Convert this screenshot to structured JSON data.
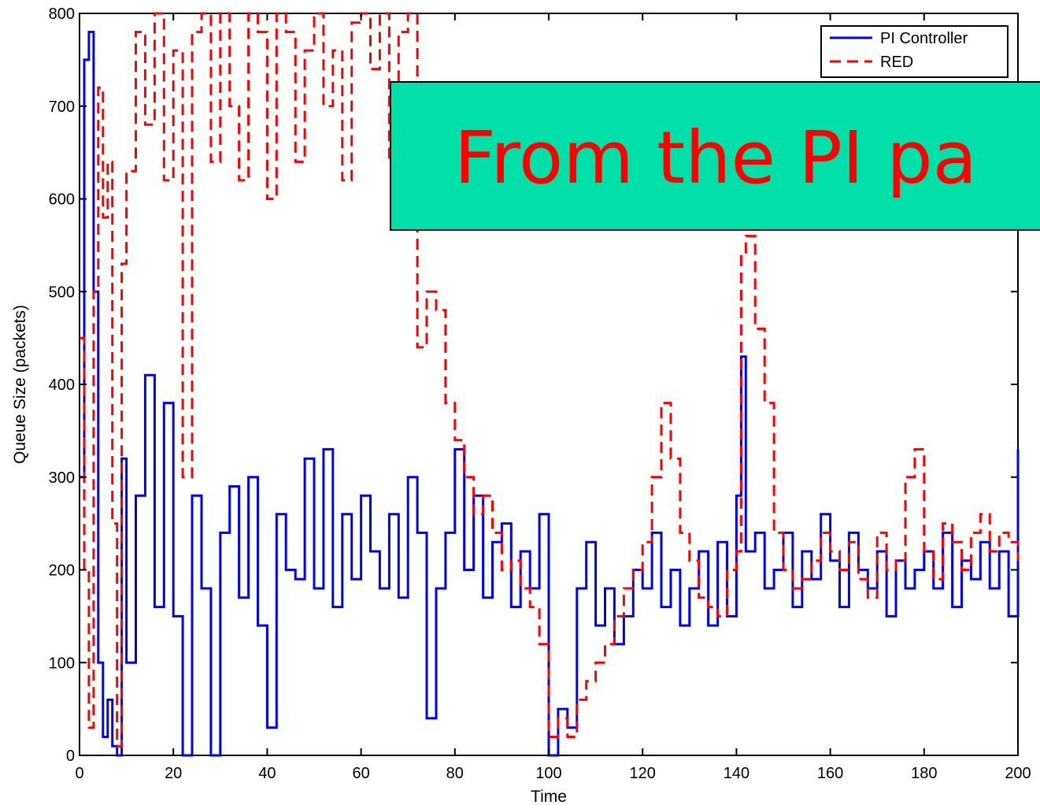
{
  "chart_data": {
    "type": "line",
    "title": "",
    "xlabel": "Time",
    "ylabel": "Queue Size (packets)",
    "xlim": [
      0,
      200
    ],
    "ylim": [
      0,
      800
    ],
    "x_ticks": [
      0,
      20,
      40,
      60,
      80,
      100,
      120,
      140,
      160,
      180,
      200
    ],
    "y_ticks": [
      0,
      100,
      200,
      300,
      400,
      500,
      600,
      700,
      800
    ],
    "grid": false,
    "legend_position": "top-right",
    "series": [
      {
        "name": "PI Controller",
        "color": "#0000ff",
        "style": "solid",
        "x": [
          0,
          1,
          2,
          3,
          4,
          5,
          6,
          7,
          8,
          9,
          10,
          12,
          14,
          16,
          18,
          20,
          22,
          24,
          26,
          28,
          30,
          32,
          34,
          36,
          38,
          40,
          42,
          44,
          46,
          48,
          50,
          52,
          54,
          56,
          58,
          60,
          62,
          64,
          66,
          68,
          70,
          72,
          74,
          76,
          78,
          80,
          82,
          84,
          86,
          88,
          90,
          92,
          94,
          96,
          98,
          100,
          102,
          104,
          106,
          108,
          110,
          112,
          114,
          116,
          118,
          120,
          122,
          124,
          126,
          128,
          130,
          132,
          134,
          136,
          138,
          140,
          141,
          142,
          144,
          146,
          148,
          150,
          152,
          154,
          156,
          158,
          160,
          162,
          164,
          166,
          168,
          170,
          172,
          174,
          176,
          178,
          180,
          182,
          184,
          186,
          188,
          190,
          192,
          194,
          196,
          198,
          200
        ],
        "values": [
          300,
          750,
          780,
          500,
          100,
          20,
          60,
          10,
          0,
          320,
          100,
          280,
          410,
          160,
          380,
          150,
          0,
          280,
          180,
          0,
          240,
          290,
          170,
          300,
          140,
          30,
          260,
          200,
          190,
          320,
          180,
          330,
          160,
          260,
          190,
          280,
          220,
          180,
          260,
          170,
          300,
          240,
          40,
          180,
          240,
          330,
          200,
          280,
          170,
          230,
          250,
          160,
          220,
          180,
          260,
          0,
          50,
          30,
          180,
          230,
          140,
          180,
          120,
          150,
          200,
          180,
          240,
          160,
          200,
          140,
          180,
          220,
          140,
          230,
          150,
          280,
          430,
          220,
          240,
          180,
          200,
          240,
          160,
          220,
          190,
          260,
          210,
          160,
          240,
          200,
          180,
          220,
          150,
          210,
          180,
          200,
          220,
          180,
          240,
          160,
          210,
          190,
          230,
          180,
          220,
          150,
          330
        ]
      },
      {
        "name": "RED",
        "color": "#ff0000",
        "style": "dashed",
        "x": [
          0,
          1,
          2,
          3,
          4,
          5,
          6,
          7,
          8,
          9,
          10,
          12,
          14,
          16,
          18,
          20,
          22,
          24,
          26,
          28,
          30,
          32,
          34,
          36,
          38,
          40,
          42,
          44,
          46,
          48,
          50,
          52,
          54,
          56,
          58,
          60,
          62,
          64,
          66,
          68,
          70,
          72,
          74,
          76,
          78,
          80,
          82,
          84,
          86,
          88,
          90,
          92,
          94,
          96,
          98,
          100,
          102,
          104,
          106,
          108,
          110,
          112,
          114,
          116,
          118,
          120,
          122,
          124,
          126,
          128,
          130,
          132,
          134,
          136,
          138,
          140,
          141,
          142,
          144,
          146,
          148,
          150,
          152,
          154,
          156,
          158,
          160,
          162,
          164,
          166,
          168,
          170,
          172,
          174,
          176,
          178,
          180,
          182,
          184,
          186,
          188,
          190,
          192,
          194,
          196,
          198,
          200
        ],
        "values": [
          450,
          200,
          30,
          500,
          720,
          580,
          640,
          250,
          10,
          530,
          630,
          780,
          680,
          800,
          620,
          760,
          300,
          780,
          800,
          640,
          800,
          700,
          620,
          800,
          780,
          600,
          800,
          780,
          640,
          760,
          800,
          700,
          760,
          620,
          790,
          800,
          740,
          800,
          640,
          780,
          800,
          440,
          500,
          480,
          380,
          340,
          300,
          260,
          280,
          240,
          200,
          210,
          180,
          160,
          120,
          20,
          40,
          20,
          60,
          80,
          100,
          120,
          150,
          180,
          200,
          230,
          300,
          380,
          320,
          240,
          210,
          170,
          160,
          150,
          200,
          220,
          540,
          560,
          460,
          380,
          240,
          200,
          180,
          190,
          210,
          240,
          220,
          200,
          230,
          190,
          170,
          240,
          200,
          210,
          300,
          330,
          220,
          190,
          250,
          230,
          200,
          240,
          260,
          220,
          240,
          230,
          210
        ]
      }
    ]
  },
  "legend": {
    "items": [
      "PI Controller",
      "RED"
    ]
  },
  "callout": {
    "text": "From the PI pa",
    "background": "#00e0a8",
    "text_color": "#ff0000"
  }
}
